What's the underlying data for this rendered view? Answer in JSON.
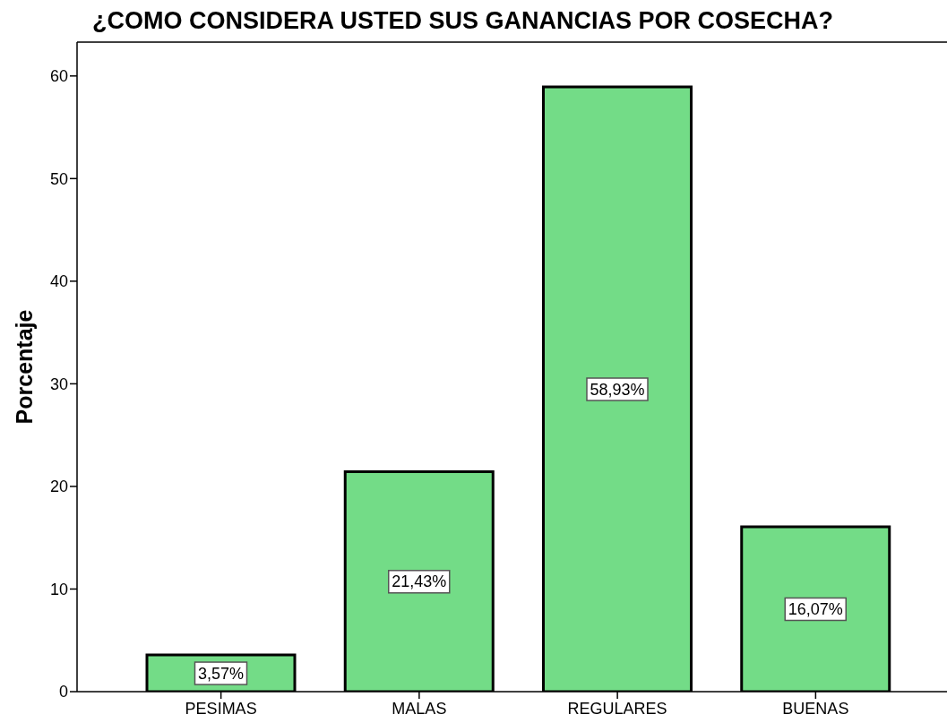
{
  "chart_data": {
    "type": "bar",
    "title": "¿COMO CONSIDERA USTED SUS GANANCIAS POR COSECHA?",
    "ylabel": "Porcentaje",
    "categories": [
      "PESIMAS",
      "MALAS",
      "REGULARES",
      "BUENAS"
    ],
    "values": [
      3.57,
      21.43,
      58.93,
      16.07
    ],
    "value_labels": [
      "3,57%",
      "21,43%",
      "58,93%",
      "16,07%"
    ],
    "color": "#73dc87",
    "ylim": [
      0,
      63.3
    ],
    "yticks": [
      0,
      10,
      20,
      30,
      40,
      50,
      60
    ]
  }
}
